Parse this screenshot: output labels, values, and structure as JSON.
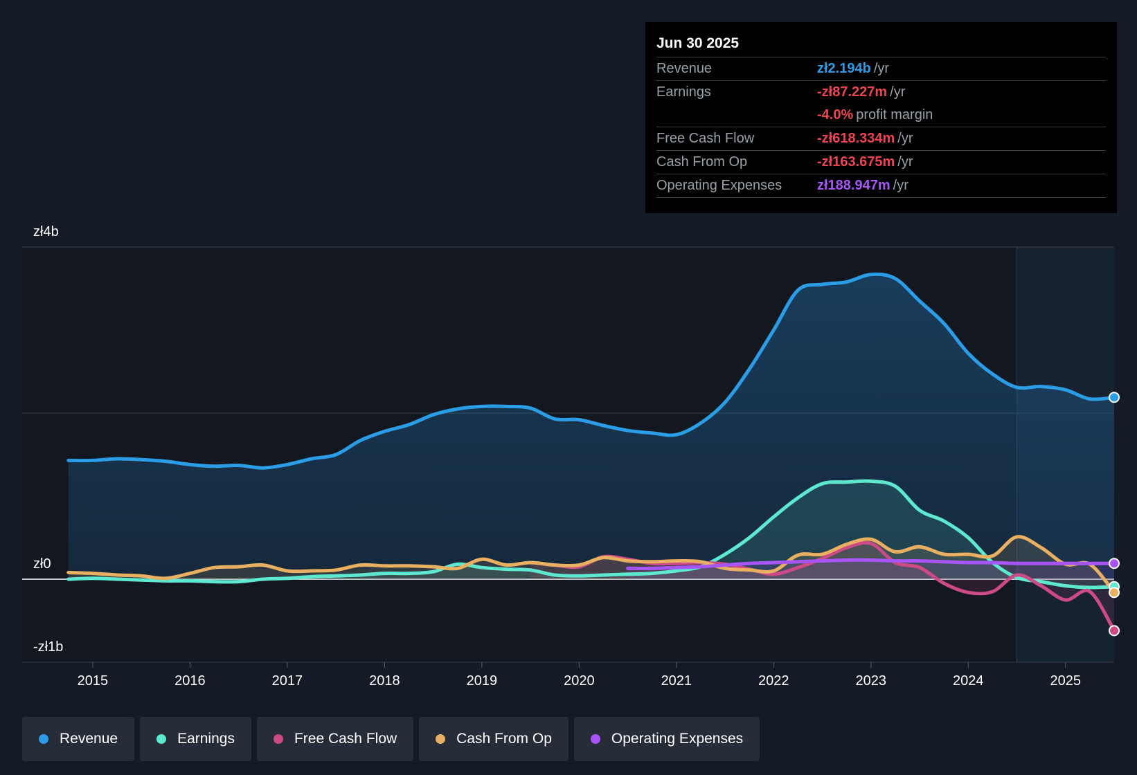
{
  "tooltip": {
    "date": "Jun 30 2025",
    "rows": [
      {
        "label": "Revenue",
        "value": "zł2.194b",
        "unit": "/yr",
        "color": "#2a9de6"
      },
      {
        "label": "Earnings",
        "value": "-zł87.227m",
        "unit": "/yr",
        "color": "#ee4452"
      },
      {
        "label": "",
        "value": "-4.0%",
        "unit": "profit margin",
        "color": "#ee4452"
      },
      {
        "label": "Free Cash Flow",
        "value": "-zł618.334m",
        "unit": "/yr",
        "color": "#ee4452"
      },
      {
        "label": "Cash From Op",
        "value": "-zł163.675m",
        "unit": "/yr",
        "color": "#ee4452"
      },
      {
        "label": "Operating Expenses",
        "value": "zł188.947m",
        "unit": "/yr",
        "color": "#a855f7"
      }
    ]
  },
  "legend": [
    {
      "label": "Revenue",
      "color": "#2a9de6"
    },
    {
      "label": "Earnings",
      "color": "#5ee8d0"
    },
    {
      "label": "Free Cash Flow",
      "color": "#cc4a85"
    },
    {
      "label": "Cash From Op",
      "color": "#e8b060"
    },
    {
      "label": "Operating Expenses",
      "color": "#a855f7"
    }
  ],
  "chart_data": {
    "type": "line",
    "title": "",
    "xlabel": "",
    "ylabel": "",
    "ylim": [
      -1,
      4
    ],
    "xlim": [
      2014.73,
      2025.5
    ],
    "y_tick_labels": [
      {
        "value": 4,
        "label": "zł4b"
      },
      {
        "value": 0,
        "label": "zł0"
      },
      {
        "value": -1,
        "label": "-zł1b"
      }
    ],
    "x_tick_labels": [
      "2015",
      "2016",
      "2017",
      "2018",
      "2019",
      "2020",
      "2021",
      "2022",
      "2023",
      "2024",
      "2025"
    ],
    "x_ticks": [
      2015,
      2016,
      2017,
      2018,
      2019,
      2020,
      2021,
      2022,
      2023,
      2024,
      2025
    ],
    "highlight_from": 2024.5,
    "series": [
      {
        "name": "Revenue",
        "color": "#2a9de6",
        "fill": true,
        "points": [
          [
            2014.75,
            1.43
          ],
          [
            2015.0,
            1.43
          ],
          [
            2015.25,
            1.45
          ],
          [
            2015.5,
            1.44
          ],
          [
            2015.75,
            1.42
          ],
          [
            2016.0,
            1.38
          ],
          [
            2016.25,
            1.36
          ],
          [
            2016.5,
            1.37
          ],
          [
            2016.75,
            1.34
          ],
          [
            2017.0,
            1.38
          ],
          [
            2017.25,
            1.45
          ],
          [
            2017.5,
            1.5
          ],
          [
            2017.75,
            1.67
          ],
          [
            2018.0,
            1.78
          ],
          [
            2018.25,
            1.86
          ],
          [
            2018.5,
            1.98
          ],
          [
            2018.75,
            2.05
          ],
          [
            2019.0,
            2.08
          ],
          [
            2019.25,
            2.08
          ],
          [
            2019.5,
            2.06
          ],
          [
            2019.75,
            1.93
          ],
          [
            2020.0,
            1.92
          ],
          [
            2020.25,
            1.85
          ],
          [
            2020.5,
            1.79
          ],
          [
            2020.75,
            1.76
          ],
          [
            2021.0,
            1.74
          ],
          [
            2021.25,
            1.88
          ],
          [
            2021.5,
            2.13
          ],
          [
            2021.75,
            2.53
          ],
          [
            2022.0,
            3.0
          ],
          [
            2022.25,
            3.48
          ],
          [
            2022.5,
            3.55
          ],
          [
            2022.75,
            3.58
          ],
          [
            2023.0,
            3.67
          ],
          [
            2023.25,
            3.62
          ],
          [
            2023.5,
            3.35
          ],
          [
            2023.75,
            3.08
          ],
          [
            2024.0,
            2.72
          ],
          [
            2024.25,
            2.47
          ],
          [
            2024.5,
            2.31
          ],
          [
            2024.75,
            2.32
          ],
          [
            2025.0,
            2.28
          ],
          [
            2025.25,
            2.17
          ],
          [
            2025.5,
            2.19
          ]
        ]
      },
      {
        "name": "Earnings",
        "color": "#5ee8d0",
        "fill": false,
        "points": [
          [
            2014.75,
            0.0
          ],
          [
            2015.0,
            0.01
          ],
          [
            2015.25,
            0.0
          ],
          [
            2015.5,
            -0.01
          ],
          [
            2015.75,
            -0.02
          ],
          [
            2016.0,
            -0.02
          ],
          [
            2016.25,
            -0.03
          ],
          [
            2016.5,
            -0.03
          ],
          [
            2016.75,
            0.0
          ],
          [
            2017.0,
            0.01
          ],
          [
            2017.25,
            0.03
          ],
          [
            2017.5,
            0.04
          ],
          [
            2017.75,
            0.05
          ],
          [
            2018.0,
            0.07
          ],
          [
            2018.25,
            0.07
          ],
          [
            2018.5,
            0.09
          ],
          [
            2018.75,
            0.18
          ],
          [
            2019.0,
            0.14
          ],
          [
            2019.25,
            0.12
          ],
          [
            2019.5,
            0.11
          ],
          [
            2019.75,
            0.05
          ],
          [
            2020.0,
            0.04
          ],
          [
            2020.25,
            0.05
          ],
          [
            2020.5,
            0.06
          ],
          [
            2020.75,
            0.07
          ],
          [
            2021.0,
            0.1
          ],
          [
            2021.25,
            0.15
          ],
          [
            2021.5,
            0.3
          ],
          [
            2021.75,
            0.5
          ],
          [
            2022.0,
            0.75
          ],
          [
            2022.25,
            0.98
          ],
          [
            2022.5,
            1.15
          ],
          [
            2022.75,
            1.17
          ],
          [
            2023.0,
            1.18
          ],
          [
            2023.25,
            1.12
          ],
          [
            2023.5,
            0.83
          ],
          [
            2023.75,
            0.7
          ],
          [
            2024.0,
            0.5
          ],
          [
            2024.25,
            0.2
          ],
          [
            2024.5,
            0.02
          ],
          [
            2024.75,
            -0.03
          ],
          [
            2025.0,
            -0.08
          ],
          [
            2025.25,
            -0.1
          ],
          [
            2025.5,
            -0.09
          ]
        ]
      },
      {
        "name": "Free Cash Flow",
        "color": "#cc4a85",
        "fill": false,
        "points": [
          [
            2019.5,
            0.2
          ],
          [
            2019.75,
            0.17
          ],
          [
            2020.0,
            0.15
          ],
          [
            2020.25,
            0.27
          ],
          [
            2020.5,
            0.24
          ],
          [
            2020.75,
            0.19
          ],
          [
            2021.0,
            0.19
          ],
          [
            2021.25,
            0.2
          ],
          [
            2021.5,
            0.18
          ],
          [
            2021.75,
            0.12
          ],
          [
            2022.0,
            0.06
          ],
          [
            2022.25,
            0.14
          ],
          [
            2022.5,
            0.25
          ],
          [
            2022.75,
            0.38
          ],
          [
            2023.0,
            0.43
          ],
          [
            2023.25,
            0.2
          ],
          [
            2023.5,
            0.14
          ],
          [
            2023.75,
            -0.05
          ],
          [
            2024.0,
            -0.16
          ],
          [
            2024.25,
            -0.15
          ],
          [
            2024.5,
            0.05
          ],
          [
            2024.75,
            -0.08
          ],
          [
            2025.0,
            -0.25
          ],
          [
            2025.25,
            -0.15
          ],
          [
            2025.5,
            -0.62
          ]
        ]
      },
      {
        "name": "Cash From Op",
        "color": "#e8b060",
        "fill": false,
        "points": [
          [
            2014.75,
            0.08
          ],
          [
            2015.0,
            0.07
          ],
          [
            2015.25,
            0.05
          ],
          [
            2015.5,
            0.04
          ],
          [
            2015.75,
            0.01
          ],
          [
            2016.0,
            0.07
          ],
          [
            2016.25,
            0.14
          ],
          [
            2016.5,
            0.15
          ],
          [
            2016.75,
            0.17
          ],
          [
            2017.0,
            0.1
          ],
          [
            2017.25,
            0.1
          ],
          [
            2017.5,
            0.11
          ],
          [
            2017.75,
            0.17
          ],
          [
            2018.0,
            0.16
          ],
          [
            2018.25,
            0.16
          ],
          [
            2018.5,
            0.15
          ],
          [
            2018.75,
            0.13
          ],
          [
            2019.0,
            0.24
          ],
          [
            2019.25,
            0.17
          ],
          [
            2019.5,
            0.2
          ],
          [
            2019.75,
            0.17
          ],
          [
            2020.0,
            0.17
          ],
          [
            2020.25,
            0.26
          ],
          [
            2020.5,
            0.22
          ],
          [
            2020.75,
            0.21
          ],
          [
            2021.0,
            0.22
          ],
          [
            2021.25,
            0.21
          ],
          [
            2021.5,
            0.13
          ],
          [
            2021.75,
            0.11
          ],
          [
            2022.0,
            0.1
          ],
          [
            2022.25,
            0.29
          ],
          [
            2022.5,
            0.3
          ],
          [
            2022.75,
            0.42
          ],
          [
            2023.0,
            0.48
          ],
          [
            2023.25,
            0.33
          ],
          [
            2023.5,
            0.39
          ],
          [
            2023.75,
            0.3
          ],
          [
            2024.0,
            0.3
          ],
          [
            2024.25,
            0.28
          ],
          [
            2024.5,
            0.51
          ],
          [
            2024.75,
            0.38
          ],
          [
            2025.0,
            0.18
          ],
          [
            2025.25,
            0.18
          ],
          [
            2025.5,
            -0.16
          ]
        ]
      },
      {
        "name": "Operating Expenses",
        "color": "#a855f7",
        "fill": false,
        "points": [
          [
            2020.5,
            0.13
          ],
          [
            2020.75,
            0.13
          ],
          [
            2021.0,
            0.14
          ],
          [
            2021.25,
            0.15
          ],
          [
            2021.5,
            0.17
          ],
          [
            2021.75,
            0.19
          ],
          [
            2022.0,
            0.2
          ],
          [
            2022.25,
            0.21
          ],
          [
            2022.5,
            0.22
          ],
          [
            2022.75,
            0.23
          ],
          [
            2023.0,
            0.23
          ],
          [
            2023.25,
            0.22
          ],
          [
            2023.5,
            0.22
          ],
          [
            2023.75,
            0.21
          ],
          [
            2024.0,
            0.2
          ],
          [
            2024.25,
            0.2
          ],
          [
            2024.5,
            0.19
          ],
          [
            2024.75,
            0.19
          ],
          [
            2025.0,
            0.19
          ],
          [
            2025.25,
            0.19
          ],
          [
            2025.5,
            0.19
          ]
        ]
      }
    ]
  }
}
